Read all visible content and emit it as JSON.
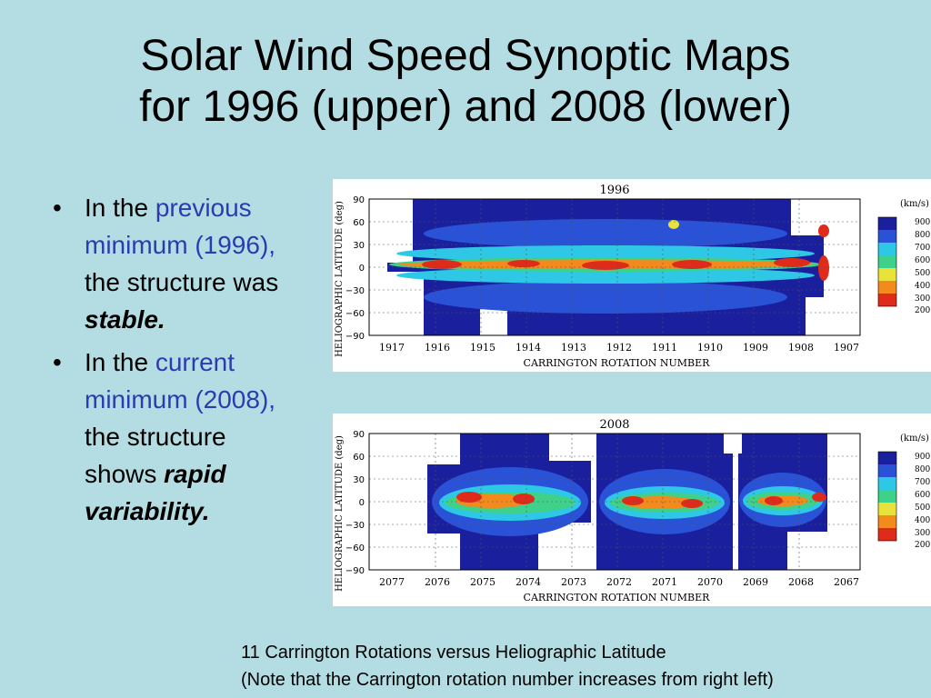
{
  "title": {
    "line1": "Solar Wind Speed Synoptic Maps",
    "line2": "for 1996 (upper) and 2008 (lower)"
  },
  "bullets": [
    {
      "prefix": "In the ",
      "highlight": "previous minimum (1996),",
      "middle": " the structure was ",
      "emphasis": "stable.",
      "highlight_color": "#2b3bb0"
    },
    {
      "prefix": "In the ",
      "highlight": "current minimum (2008),",
      "middle": " the structure shows ",
      "emphasis": "rapid variability.",
      "highlight_color": "#2b3bb0"
    }
  ],
  "maps": [
    {
      "year": "1996",
      "ylabel": "HELIOGRAPHIC LATITUDE (deg)",
      "xlabel": "CARRINGTON ROTATION NUMBER",
      "yticks": [
        "90",
        "60",
        "30",
        "0",
        "−30",
        "−60",
        "−90"
      ],
      "xticks": [
        "1917",
        "1916",
        "1915",
        "1914",
        "1913",
        "1912",
        "1911",
        "1910",
        "1909",
        "1908",
        "1907"
      ],
      "unit": "(km/s)",
      "colorbar": [
        "900",
        "800",
        "700",
        "600",
        "500",
        "400",
        "300",
        "200"
      ]
    },
    {
      "year": "2008",
      "ylabel": "HELIOGRAPHIC LATITUDE (deg)",
      "xlabel": "CARRINGTON ROTATION NUMBER",
      "yticks": [
        "90",
        "60",
        "30",
        "0",
        "−30",
        "−60",
        "−90"
      ],
      "xticks": [
        "2077",
        "2076",
        "2075",
        "2074",
        "2073",
        "2072",
        "2071",
        "2070",
        "2069",
        "2068",
        "2067"
      ],
      "unit": "(km/s)",
      "colorbar": [
        "900",
        "800",
        "700",
        "600",
        "500",
        "400",
        "300",
        "200"
      ]
    }
  ],
  "caption": {
    "line1": "11 Carrington Rotations versus Heliographic Latitude",
    "line2": "(Note that the Carrington rotation number increases from right left)"
  },
  "colors": {
    "background": "#b4dde3",
    "highlight": "#2b3bb0",
    "scale": [
      "#1a1f9e",
      "#2a52d6",
      "#2ec8e6",
      "#3fd08a",
      "#e8e23a",
      "#f28a1e",
      "#e02a1a",
      "#b0101a"
    ]
  }
}
